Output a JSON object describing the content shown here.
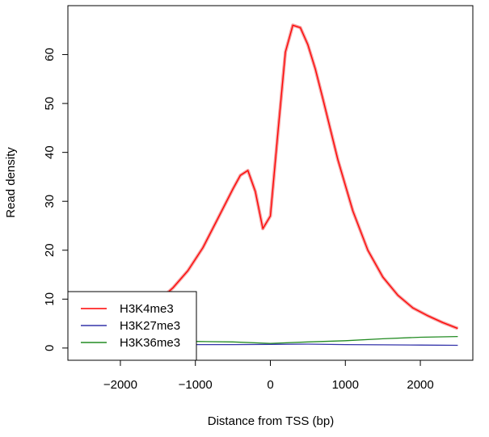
{
  "chart_data": {
    "type": "line",
    "title": "",
    "xlabel": "Distance from TSS (bp)",
    "ylabel": "Read density",
    "xlim": [
      -2700,
      2700
    ],
    "ylim": [
      -2.5,
      70
    ],
    "x_ticks": [
      -2000,
      -1000,
      0,
      1000,
      2000
    ],
    "x_tick_labels": [
      "−2000",
      "−1000",
      "0",
      "1000",
      "2000"
    ],
    "y_ticks": [
      0,
      10,
      20,
      30,
      40,
      50,
      60
    ],
    "y_tick_labels": [
      "0",
      "10",
      "20",
      "30",
      "40",
      "50",
      "60"
    ],
    "grid": false,
    "legend_position": "bottom-left",
    "series": [
      {
        "name": "H3K4me3",
        "color": "#ff0000",
        "x": [
          -2500,
          -2300,
          -2100,
          -1900,
          -1700,
          -1500,
          -1300,
          -1100,
          -900,
          -700,
          -500,
          -400,
          -300,
          -200,
          -100,
          0,
          100,
          200,
          300,
          400,
          500,
          600,
          700,
          900,
          1100,
          1300,
          1500,
          1700,
          1900,
          2100,
          2300,
          2500
        ],
        "values": [
          3.3,
          3.8,
          4.6,
          5.7,
          7.3,
          9.5,
          12.3,
          15.8,
          20.5,
          26.5,
          32.5,
          35.3,
          36.3,
          32.0,
          24.4,
          27.0,
          44.0,
          60.5,
          66.0,
          65.5,
          62.0,
          57.0,
          51.0,
          38.5,
          28.0,
          20.0,
          14.5,
          10.8,
          8.2,
          6.6,
          5.2,
          4.0
        ]
      },
      {
        "name": "H3K27me3",
        "color": "#3333aa",
        "x": [
          -2500,
          -2000,
          -1500,
          -1000,
          -500,
          0,
          500,
          1000,
          1500,
          2000,
          2500
        ],
        "values": [
          0.7,
          0.7,
          0.75,
          0.7,
          0.7,
          0.75,
          0.8,
          0.7,
          0.65,
          0.6,
          0.55
        ]
      },
      {
        "name": "H3K36me3",
        "color": "#228b22",
        "x": [
          -2500,
          -2000,
          -1500,
          -1000,
          -500,
          0,
          500,
          1000,
          1500,
          2000,
          2500
        ],
        "values": [
          1.4,
          1.45,
          1.4,
          1.35,
          1.25,
          0.95,
          1.25,
          1.5,
          1.9,
          2.2,
          2.35
        ]
      }
    ]
  }
}
